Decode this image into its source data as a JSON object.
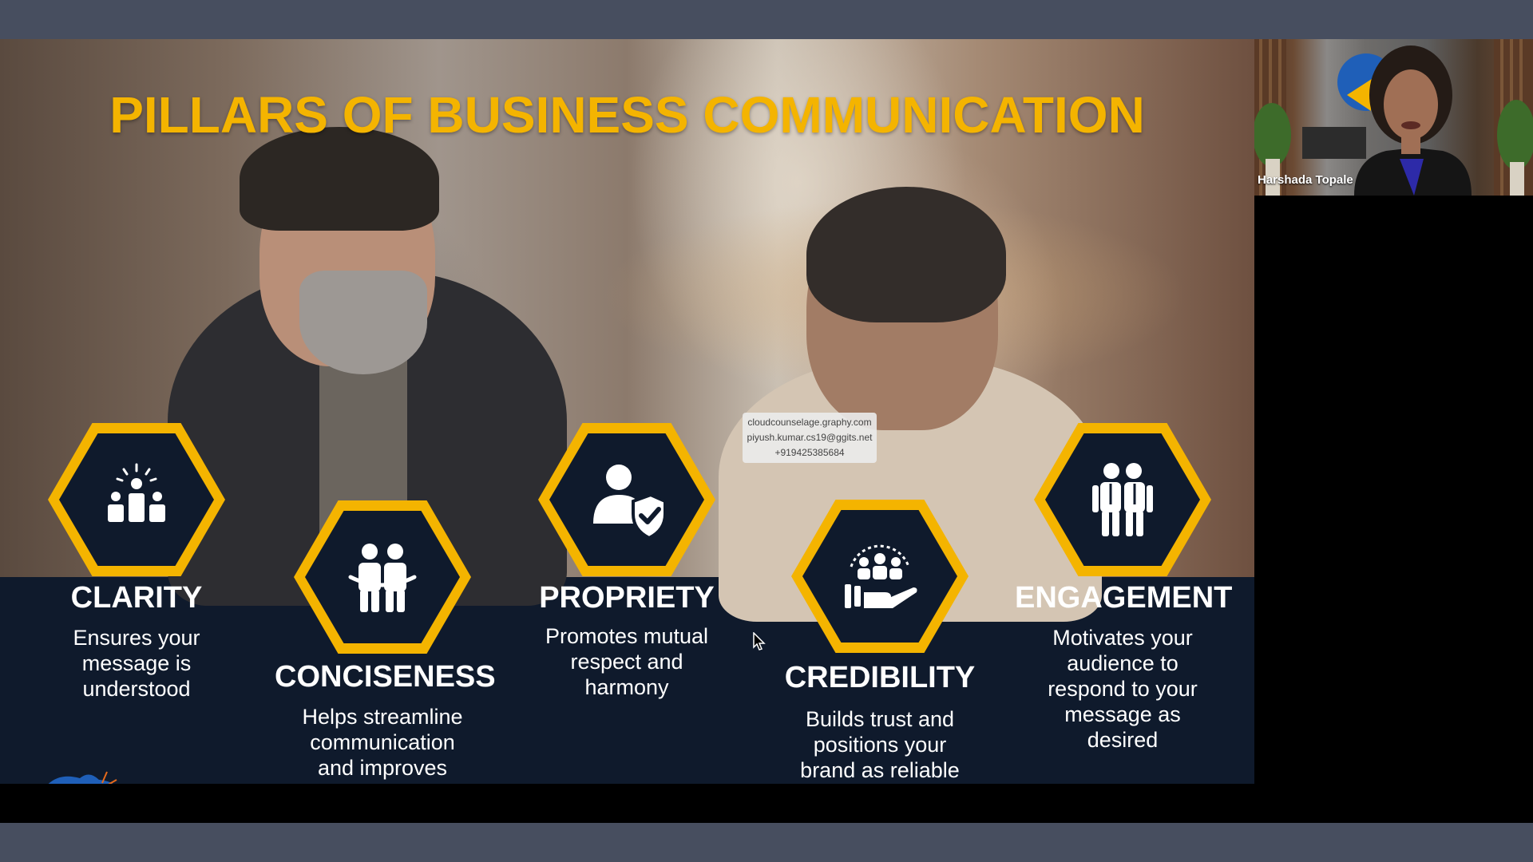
{
  "slide": {
    "title": "PILLARS OF BUSINESS COMMUNICATION",
    "pillars": [
      {
        "title": "CLARITY",
        "description": "Ensures your message is understood",
        "icon": "audience-idea-icon"
      },
      {
        "title": "CONCISENESS",
        "description": "Helps streamline communication and improves",
        "icon": "two-people-icon"
      },
      {
        "title": "PROPRIETY",
        "description": "Promotes mutual respect and harmony",
        "icon": "user-shield-icon"
      },
      {
        "title": "CREDIBILITY",
        "description": "Builds trust and positions your brand as reliable",
        "icon": "hand-group-icon"
      },
      {
        "title": "ENGAGEMENT",
        "description": "Motivates your audience to respond to your message as desired",
        "icon": "team-icon"
      }
    ],
    "watermark": {
      "line1": "cloudcounselage.graphy.com",
      "line2": "piyush.kumar.cs19@ggits.net",
      "line3": "+919425385684"
    }
  },
  "webcam": {
    "participant_name": "Harshada Topale"
  },
  "colors": {
    "accent": "#f4b400",
    "navy": "#0f1a2c",
    "frame": "#474e5f"
  }
}
